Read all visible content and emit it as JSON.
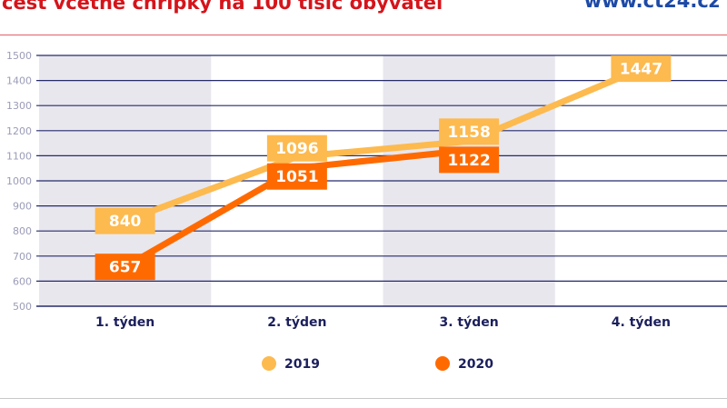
{
  "header": {
    "title": "cest včetně chřipky na 100 tisíc obyvatel",
    "website": "www.ct24.cz"
  },
  "chart_data": {
    "type": "line",
    "categories": [
      "1. týden",
      "2. týden",
      "3. týden",
      "4. týden"
    ],
    "series": [
      {
        "name": "2019",
        "color": "#FDBA4F",
        "values": [
          840,
          1096,
          1158,
          1447
        ]
      },
      {
        "name": "2020",
        "color": "#FF6A00",
        "values": [
          657,
          1051,
          1122,
          null
        ]
      }
    ],
    "ylim": [
      500,
      1500
    ],
    "yticks": [
      500,
      600,
      700,
      800,
      900,
      1000,
      1100,
      1200,
      1300,
      1400,
      1500
    ],
    "grid": true,
    "shaded_categories": [
      "1. týden",
      "3. týden"
    ],
    "legend": "bottom",
    "data_labels": true
  }
}
